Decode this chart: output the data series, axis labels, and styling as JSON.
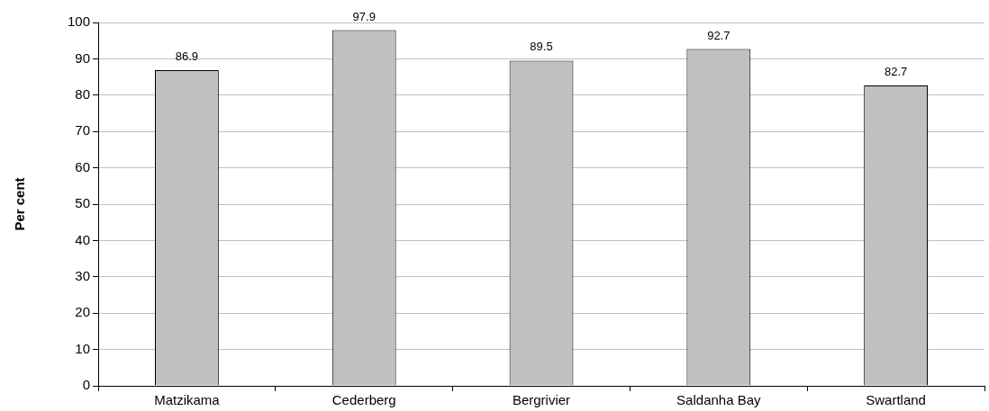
{
  "chart_data": {
    "type": "bar",
    "ylabel": "Per cent",
    "categories": [
      "Matzikama",
      "Cederberg",
      "Bergrivier",
      "Saldanha Bay",
      "Swartland"
    ],
    "values": [
      86.9,
      97.9,
      89.5,
      92.7,
      82.7
    ],
    "color": "#c0c0c0",
    "ylim": [
      0,
      100
    ],
    "yticks": [
      0,
      10,
      20,
      30,
      40,
      50,
      60,
      70,
      80,
      90,
      100
    ],
    "grid": "y",
    "legend": false,
    "data_labels": true
  }
}
